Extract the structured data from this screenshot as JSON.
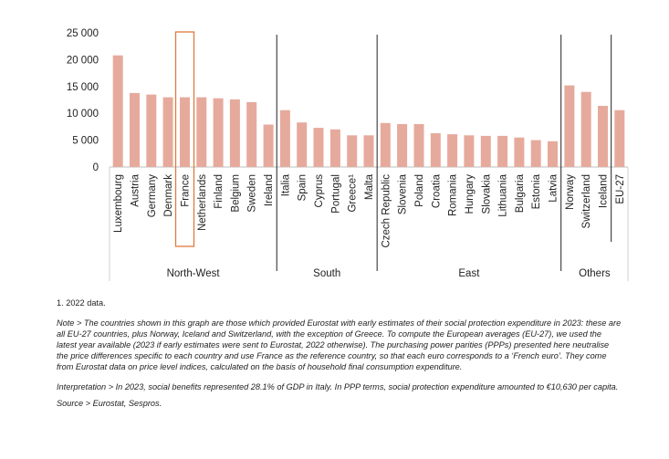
{
  "chart_data": {
    "type": "bar",
    "categories": [
      "Luxembourg",
      "Austria",
      "Germany",
      "Denmark",
      "France",
      "Netherlands",
      "Finland",
      "Belgium",
      "Sweden",
      "Ireland",
      "Italia",
      "Spain",
      "Cyprus",
      "Portugal",
      "Greece¹",
      "Malta",
      "Czech Republic",
      "Slovenia",
      "Poland",
      "Croatia",
      "Romania",
      "Hungary",
      "Slovakia",
      "Lithuania",
      "Bulgaria",
      "Estonia",
      "Latvia",
      "Norway",
      "Switzerland",
      "Iceland",
      "EU-27"
    ],
    "values": [
      20800,
      13800,
      13500,
      13000,
      13000,
      13000,
      12800,
      12600,
      12100,
      7900,
      10600,
      8300,
      7300,
      7000,
      5900,
      5900,
      8200,
      8000,
      8000,
      6300,
      6100,
      5900,
      5800,
      5800,
      5500,
      5000,
      4800,
      15200,
      14000,
      11400,
      10600
    ],
    "groups": [
      {
        "name": "North-West",
        "count": 10
      },
      {
        "name": "South",
        "count": 6
      },
      {
        "name": "East",
        "count": 11
      },
      {
        "name": "Others",
        "count": 4
      }
    ],
    "highlight": "France",
    "ylim": [
      0,
      25000
    ],
    "yticks": [
      "0",
      "5 000",
      "10 000",
      "15 000",
      "20 000",
      "25 000"
    ],
    "ytick_values": [
      0,
      5000,
      10000,
      15000,
      20000,
      25000
    ],
    "bar_color": "#e6aa9c",
    "highlight_color": "#e07a3c",
    "title": "",
    "xlabel": "",
    "ylabel": ""
  },
  "notes": {
    "footnote": "1. 2022 data.",
    "note": "Note > The countries shown in this graph are those which provided Eurostat with early estimates of their social protection expenditure in 2023: these are all EU-27 countries, plus Norway, Iceland and Switzerland, with the exception of Greece. To compute the European averages (EU-27), we used the latest year available (2023 if early estimates were sent to Eurostat, 2022 otherwise). The purchasing power parities (PPPs) presented here neutralise the price differences specific to each country and use France as the reference country, so that each euro corresponds to a ‘French euro’. They come from Eurostat data on price level indices, calculated on the basis of household final consumption expenditure.",
    "interpretation": "Interpretation > In 2023, social benefits represented 28.1% of GDP in Italy. In PPP terms, social protection expenditure amounted to €10,630 per capita.",
    "source": "Source > Eurostat, Sespros."
  }
}
